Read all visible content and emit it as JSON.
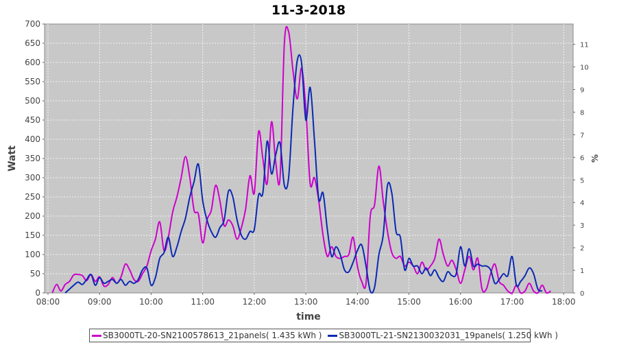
{
  "chart_data": {
    "type": "line",
    "title": "11-3-2018",
    "xlabel": "time",
    "ylabel": "Watt",
    "y2label": "%",
    "ylim": [
      0,
      700
    ],
    "y2lim": [
      0,
      11.9
    ],
    "yticks": [
      0,
      50,
      100,
      150,
      200,
      250,
      300,
      350,
      400,
      450,
      500,
      550,
      600,
      650,
      700
    ],
    "y2ticks": [
      0,
      1,
      2,
      3,
      4,
      5,
      6,
      7,
      8,
      9,
      10,
      11
    ],
    "xlim": [
      "07:56",
      "18:11"
    ],
    "xticks": [
      "08:00",
      "09:00",
      "10:00",
      "11:00",
      "12:00",
      "13:00",
      "14:00",
      "15:00",
      "16:00",
      "17:00",
      "18:00"
    ],
    "grid": true,
    "legend": "bottom",
    "series": [
      {
        "name": "SB3000TL-20-SN2100578613_21panels( 1.435 kWh )",
        "color": "#cc00cc",
        "points": [
          [
            "08:05",
            0
          ],
          [
            "08:10",
            22
          ],
          [
            "08:15",
            5
          ],
          [
            "08:20",
            22
          ],
          [
            "08:25",
            30
          ],
          [
            "08:30",
            47
          ],
          [
            "08:35",
            48
          ],
          [
            "08:40",
            45
          ],
          [
            "08:45",
            32
          ],
          [
            "08:50",
            48
          ],
          [
            "08:55",
            30
          ],
          [
            "09:00",
            42
          ],
          [
            "09:05",
            18
          ],
          [
            "09:10",
            22
          ],
          [
            "09:15",
            40
          ],
          [
            "09:20",
            25
          ],
          [
            "09:25",
            42
          ],
          [
            "09:30",
            75
          ],
          [
            "09:35",
            60
          ],
          [
            "09:40",
            35
          ],
          [
            "09:45",
            30
          ],
          [
            "09:50",
            50
          ],
          [
            "09:55",
            70
          ],
          [
            "10:00",
            110
          ],
          [
            "10:05",
            140
          ],
          [
            "10:10",
            185
          ],
          [
            "10:15",
            110
          ],
          [
            "10:20",
            145
          ],
          [
            "10:25",
            210
          ],
          [
            "10:30",
            250
          ],
          [
            "10:35",
            300
          ],
          [
            "10:40",
            355
          ],
          [
            "10:45",
            300
          ],
          [
            "10:50",
            215
          ],
          [
            "10:55",
            205
          ],
          [
            "11:00",
            130
          ],
          [
            "11:05",
            190
          ],
          [
            "11:10",
            215
          ],
          [
            "11:15",
            280
          ],
          [
            "11:20",
            240
          ],
          [
            "11:25",
            175
          ],
          [
            "11:30",
            190
          ],
          [
            "11:35",
            175
          ],
          [
            "11:40",
            140
          ],
          [
            "11:45",
            170
          ],
          [
            "11:50",
            220
          ],
          [
            "11:55",
            305
          ],
          [
            "12:00",
            260
          ],
          [
            "12:05",
            420
          ],
          [
            "12:10",
            350
          ],
          [
            "12:15",
            285
          ],
          [
            "12:20",
            445
          ],
          [
            "12:25",
            340
          ],
          [
            "12:30",
            300
          ],
          [
            "12:35",
            650
          ],
          [
            "12:40",
            680
          ],
          [
            "12:45",
            580
          ],
          [
            "12:50",
            505
          ],
          [
            "12:55",
            585
          ],
          [
            "13:00",
            480
          ],
          [
            "13:05",
            285
          ],
          [
            "13:10",
            300
          ],
          [
            "13:15",
            240
          ],
          [
            "13:20",
            150
          ],
          [
            "13:25",
            95
          ],
          [
            "13:30",
            120
          ],
          [
            "13:35",
            95
          ],
          [
            "13:40",
            90
          ],
          [
            "13:45",
            95
          ],
          [
            "13:50",
            100
          ],
          [
            "13:55",
            145
          ],
          [
            "14:00",
            70
          ],
          [
            "14:05",
            30
          ],
          [
            "14:10",
            25
          ],
          [
            "14:15",
            200
          ],
          [
            "14:20",
            230
          ],
          [
            "14:25",
            330
          ],
          [
            "14:30",
            240
          ],
          [
            "14:35",
            160
          ],
          [
            "14:40",
            105
          ],
          [
            "14:45",
            90
          ],
          [
            "14:50",
            95
          ],
          [
            "14:55",
            70
          ],
          [
            "15:00",
            80
          ],
          [
            "15:05",
            70
          ],
          [
            "15:10",
            50
          ],
          [
            "15:15",
            80
          ],
          [
            "15:20",
            60
          ],
          [
            "15:25",
            70
          ],
          [
            "15:30",
            90
          ],
          [
            "15:35",
            140
          ],
          [
            "15:40",
            100
          ],
          [
            "15:45",
            70
          ],
          [
            "15:50",
            85
          ],
          [
            "15:55",
            60
          ],
          [
            "16:00",
            25
          ],
          [
            "16:05",
            60
          ],
          [
            "16:10",
            95
          ],
          [
            "16:15",
            60
          ],
          [
            "16:20",
            90
          ],
          [
            "16:25",
            10
          ],
          [
            "16:30",
            10
          ],
          [
            "16:35",
            50
          ],
          [
            "16:40",
            75
          ],
          [
            "16:45",
            30
          ],
          [
            "16:50",
            20
          ],
          [
            "16:55",
            5
          ],
          [
            "17:00",
            0
          ],
          [
            "17:05",
            20
          ],
          [
            "17:10",
            0
          ],
          [
            "17:15",
            5
          ],
          [
            "17:20",
            25
          ],
          [
            "17:25",
            5
          ],
          [
            "17:30",
            0
          ],
          [
            "17:35",
            20
          ],
          [
            "17:40",
            0
          ],
          [
            "17:45",
            5
          ]
        ]
      },
      {
        "name": "SB3000TL-21-SN2130032031_19panels( 1.250 kWh )",
        "color": "#0a28b4",
        "points": [
          [
            "08:20",
            0
          ],
          [
            "08:25",
            10
          ],
          [
            "08:30",
            20
          ],
          [
            "08:35",
            28
          ],
          [
            "08:40",
            22
          ],
          [
            "08:45",
            35
          ],
          [
            "08:50",
            48
          ],
          [
            "08:55",
            20
          ],
          [
            "09:00",
            40
          ],
          [
            "09:05",
            25
          ],
          [
            "09:10",
            30
          ],
          [
            "09:15",
            35
          ],
          [
            "09:20",
            25
          ],
          [
            "09:25",
            35
          ],
          [
            "09:30",
            20
          ],
          [
            "09:35",
            30
          ],
          [
            "09:40",
            25
          ],
          [
            "09:45",
            35
          ],
          [
            "09:50",
            60
          ],
          [
            "09:55",
            65
          ],
          [
            "10:00",
            20
          ],
          [
            "10:05",
            40
          ],
          [
            "10:10",
            90
          ],
          [
            "10:15",
            105
          ],
          [
            "10:20",
            145
          ],
          [
            "10:25",
            95
          ],
          [
            "10:30",
            120
          ],
          [
            "10:35",
            160
          ],
          [
            "10:40",
            195
          ],
          [
            "10:45",
            250
          ],
          [
            "10:50",
            290
          ],
          [
            "10:55",
            335
          ],
          [
            "11:00",
            240
          ],
          [
            "11:05",
            190
          ],
          [
            "11:10",
            160
          ],
          [
            "11:15",
            145
          ],
          [
            "11:20",
            170
          ],
          [
            "11:25",
            190
          ],
          [
            "11:30",
            265
          ],
          [
            "11:35",
            250
          ],
          [
            "11:40",
            190
          ],
          [
            "11:45",
            150
          ],
          [
            "11:50",
            140
          ],
          [
            "11:55",
            160
          ],
          [
            "12:00",
            165
          ],
          [
            "12:05",
            255
          ],
          [
            "12:10",
            260
          ],
          [
            "12:15",
            395
          ],
          [
            "12:20",
            310
          ],
          [
            "12:25",
            360
          ],
          [
            "12:30",
            390
          ],
          [
            "12:35",
            280
          ],
          [
            "12:40",
            300
          ],
          [
            "12:45",
            480
          ],
          [
            "12:50",
            605
          ],
          [
            "12:55",
            600
          ],
          [
            "13:00",
            450
          ],
          [
            "13:05",
            535
          ],
          [
            "13:10",
            400
          ],
          [
            "13:15",
            245
          ],
          [
            "13:20",
            260
          ],
          [
            "13:25",
            165
          ],
          [
            "13:30",
            95
          ],
          [
            "13:35",
            120
          ],
          [
            "13:40",
            100
          ],
          [
            "13:45",
            60
          ],
          [
            "13:50",
            55
          ],
          [
            "13:55",
            80
          ],
          [
            "14:00",
            110
          ],
          [
            "14:05",
            125
          ],
          [
            "14:10",
            70
          ],
          [
            "14:15",
            5
          ],
          [
            "14:20",
            15
          ],
          [
            "14:25",
            100
          ],
          [
            "14:30",
            150
          ],
          [
            "14:35",
            280
          ],
          [
            "14:40",
            260
          ],
          [
            "14:45",
            160
          ],
          [
            "14:50",
            145
          ],
          [
            "14:55",
            60
          ],
          [
            "15:00",
            90
          ],
          [
            "15:05",
            70
          ],
          [
            "15:10",
            70
          ],
          [
            "15:15",
            50
          ],
          [
            "15:20",
            65
          ],
          [
            "15:25",
            45
          ],
          [
            "15:30",
            60
          ],
          [
            "15:35",
            40
          ],
          [
            "15:40",
            30
          ],
          [
            "15:45",
            55
          ],
          [
            "15:50",
            45
          ],
          [
            "15:55",
            50
          ],
          [
            "16:00",
            120
          ],
          [
            "16:05",
            70
          ],
          [
            "16:10",
            115
          ],
          [
            "16:15",
            70
          ],
          [
            "16:20",
            75
          ],
          [
            "16:25",
            70
          ],
          [
            "16:30",
            70
          ],
          [
            "16:35",
            60
          ],
          [
            "16:40",
            25
          ],
          [
            "16:45",
            35
          ],
          [
            "16:50",
            50
          ],
          [
            "16:55",
            45
          ],
          [
            "17:00",
            95
          ],
          [
            "17:05",
            20
          ],
          [
            "17:10",
            30
          ],
          [
            "17:15",
            45
          ],
          [
            "17:20",
            65
          ],
          [
            "17:25",
            50
          ],
          [
            "17:30",
            10
          ],
          [
            "17:35",
            5
          ]
        ]
      }
    ]
  }
}
